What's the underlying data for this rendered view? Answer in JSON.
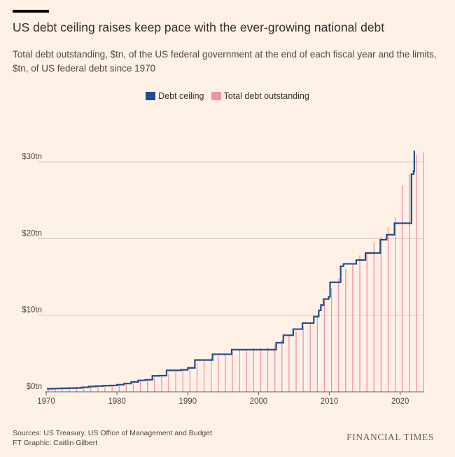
{
  "header": {
    "title": "US debt ceiling raises keep pace with the ever-growing national debt",
    "subtitle": "Total debt outstanding, $tn, of the US federal government at the end of each fiscal year and the limits, $tn, of US federal debt since 1970"
  },
  "legend": {
    "ceiling_label": "Debt ceiling",
    "debt_label": "Total debt outstanding"
  },
  "footer": {
    "sources": "Sources: US Treasury, US Office of Management and Budget",
    "credit": "FT Graphic: Caitlin Gilbert",
    "brand": "FINANCIAL TIMES"
  },
  "colors": {
    "ceiling": "#1f4e8c",
    "debt": "#f58ea8",
    "grid": "#d9cbc0",
    "axis": "#66605c"
  },
  "chart_data": {
    "type": "line",
    "title": "US debt ceiling raises keep pace with the ever-growing national debt",
    "xlabel": "",
    "ylabel": "",
    "xlim": [
      1970,
      2023.3
    ],
    "ylim": [
      0,
      30
    ],
    "y_ticks": [
      {
        "value": 0,
        "label": "$0tn"
      },
      {
        "value": 10,
        "label": "$10tn"
      },
      {
        "value": 20,
        "label": "$20tn"
      },
      {
        "value": 30,
        "label": "$30tn"
      }
    ],
    "x_ticks": [
      1970,
      1980,
      1990,
      2000,
      2010,
      2020
    ],
    "grid": true,
    "legend_position": "top-center",
    "series": [
      {
        "name": "Debt ceiling",
        "kind": "step-line",
        "points": [
          [
            1970.1,
            0.4
          ],
          [
            1971.0,
            0.43
          ],
          [
            1972.0,
            0.46
          ],
          [
            1973.0,
            0.48
          ],
          [
            1974.0,
            0.5
          ],
          [
            1975.0,
            0.58
          ],
          [
            1976.0,
            0.7
          ],
          [
            1977.0,
            0.75
          ],
          [
            1978.0,
            0.8
          ],
          [
            1979.0,
            0.83
          ],
          [
            1980.0,
            0.93
          ],
          [
            1981.0,
            1.08
          ],
          [
            1982.0,
            1.29
          ],
          [
            1983.0,
            1.49
          ],
          [
            1984.0,
            1.57
          ],
          [
            1985.0,
            2.08
          ],
          [
            1986.0,
            2.11
          ],
          [
            1987.0,
            2.8
          ],
          [
            1988.0,
            2.8
          ],
          [
            1989.0,
            2.87
          ],
          [
            1990.0,
            3.12
          ],
          [
            1991.0,
            4.15
          ],
          [
            1993.5,
            4.9
          ],
          [
            1996.2,
            5.5
          ],
          [
            2002.5,
            6.4
          ],
          [
            2003.5,
            7.38
          ],
          [
            2004.9,
            8.18
          ],
          [
            2006.2,
            8.97
          ],
          [
            2007.8,
            9.82
          ],
          [
            2008.5,
            10.62
          ],
          [
            2008.8,
            11.32
          ],
          [
            2009.2,
            12.1
          ],
          [
            2009.9,
            12.39
          ],
          [
            2010.1,
            14.29
          ],
          [
            2011.6,
            16.39
          ],
          [
            2012.0,
            16.7
          ],
          [
            2013.1,
            16.7
          ],
          [
            2013.8,
            17.2
          ],
          [
            2015.1,
            18.11
          ],
          [
            2015.8,
            18.11
          ],
          [
            2017.2,
            19.84
          ],
          [
            2018.1,
            20.5
          ],
          [
            2019.2,
            22.0
          ],
          [
            2019.6,
            22.0
          ],
          [
            2020.0,
            22.0
          ],
          [
            2021.6,
            28.4
          ],
          [
            2021.9,
            28.8
          ],
          [
            2022.0,
            31.38
          ],
          [
            2022.1,
            31.38
          ]
        ]
      },
      {
        "name": "Total debt outstanding",
        "kind": "bars",
        "x": [
          1970,
          1971,
          1972,
          1973,
          1974,
          1975,
          1976,
          1977,
          1978,
          1979,
          1980,
          1981,
          1982,
          1983,
          1984,
          1985,
          1986,
          1987,
          1988,
          1989,
          1990,
          1991,
          1992,
          1993,
          1994,
          1995,
          1996,
          1997,
          1998,
          1999,
          2000,
          2001,
          2002,
          2003,
          2004,
          2005,
          2006,
          2007,
          2008,
          2009,
          2010,
          2011,
          2012,
          2013,
          2014,
          2015,
          2016,
          2017,
          2018,
          2019,
          2020,
          2021,
          2022,
          2023
        ],
        "values": [
          0.38,
          0.41,
          0.44,
          0.47,
          0.48,
          0.54,
          0.63,
          0.71,
          0.78,
          0.83,
          0.91,
          1.0,
          1.14,
          1.37,
          1.56,
          1.82,
          2.13,
          2.35,
          2.6,
          2.86,
          3.23,
          3.67,
          4.06,
          4.41,
          4.69,
          4.97,
          5.22,
          5.41,
          5.53,
          5.66,
          5.67,
          5.81,
          6.23,
          6.78,
          7.38,
          7.93,
          8.51,
          9.01,
          10.02,
          11.91,
          13.56,
          14.79,
          16.07,
          16.74,
          17.82,
          18.15,
          19.57,
          20.24,
          21.52,
          22.72,
          26.95,
          28.43,
          30.93,
          31.35
        ]
      }
    ]
  }
}
